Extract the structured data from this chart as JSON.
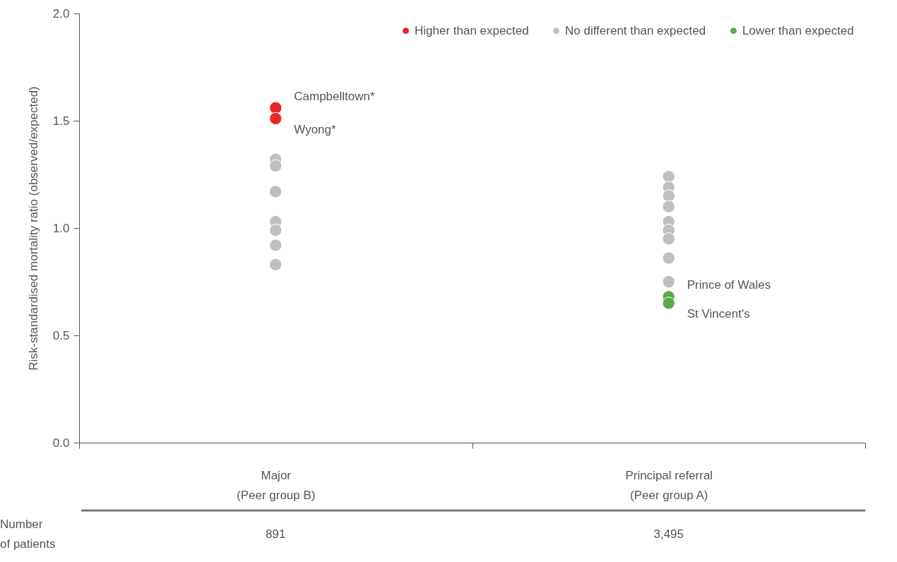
{
  "chart_data": {
    "type": "scatter",
    "ylabel": "Risk-standardised mortality ratio (observed/expected)",
    "categories": [
      "Major\n(Peer group B)",
      "Principal referral\n(Peer group A)"
    ],
    "ylim": [
      0,
      2
    ],
    "yticks": [
      {
        "value": 0,
        "label": "0.0"
      },
      {
        "value": 0.5,
        "label": "0.5"
      },
      {
        "value": 1,
        "label": "1.0"
      },
      {
        "value": 1.5,
        "label": "1.5"
      },
      {
        "value": 2,
        "label": "2.0"
      }
    ],
    "grid": false,
    "legend": "top right",
    "marker": "circle",
    "series": [
      {
        "name": "Higher than expected",
        "color": "#e8262a",
        "x": [
          "Major\n(Peer group B)",
          "Major\n(Peer group B)"
        ],
        "values": [
          1.56,
          1.51
        ]
      },
      {
        "name": "No different than expected",
        "color": "#bfbfbf",
        "x": [
          "Major\n(Peer group B)",
          "Major\n(Peer group B)",
          "Major\n(Peer group B)",
          "Major\n(Peer group B)",
          "Major\n(Peer group B)",
          "Major\n(Peer group B)",
          "Major\n(Peer group B)",
          "Principal referral\n(Peer group A)",
          "Principal referral\n(Peer group A)",
          "Principal referral\n(Peer group A)",
          "Principal referral\n(Peer group A)",
          "Principal referral\n(Peer group A)",
          "Principal referral\n(Peer group A)",
          "Principal referral\n(Peer group A)",
          "Principal referral\n(Peer group A)",
          "Principal referral\n(Peer group A)"
        ],
        "values": [
          1.32,
          1.29,
          1.17,
          1.03,
          0.99,
          0.92,
          0.83,
          1.24,
          1.19,
          1.15,
          1.1,
          1.03,
          0.99,
          0.95,
          0.86,
          0.75
        ]
      },
      {
        "name": "Lower than expected",
        "color": "#5aaa46",
        "x": [
          "Principal referral\n(Peer group A)",
          "Principal referral\n(Peer group A)"
        ],
        "values": [
          0.68,
          0.65
        ]
      }
    ],
    "annotations": [
      {
        "text": "Campbelltown*",
        "x": "Major\n(Peer group B)",
        "y": 1.56
      },
      {
        "text": "Wyong*",
        "x": "Major\n(Peer group B)",
        "y": 1.51
      },
      {
        "text": "Prince of Wales",
        "x": "Principal referral\n(Peer group A)",
        "y": 0.68
      },
      {
        "text": "St Vincent's",
        "x": "Principal referral\n(Peer group A)",
        "y": 0.65
      },
      "Number\nof patients",
      "891",
      "3,495"
    ]
  }
}
